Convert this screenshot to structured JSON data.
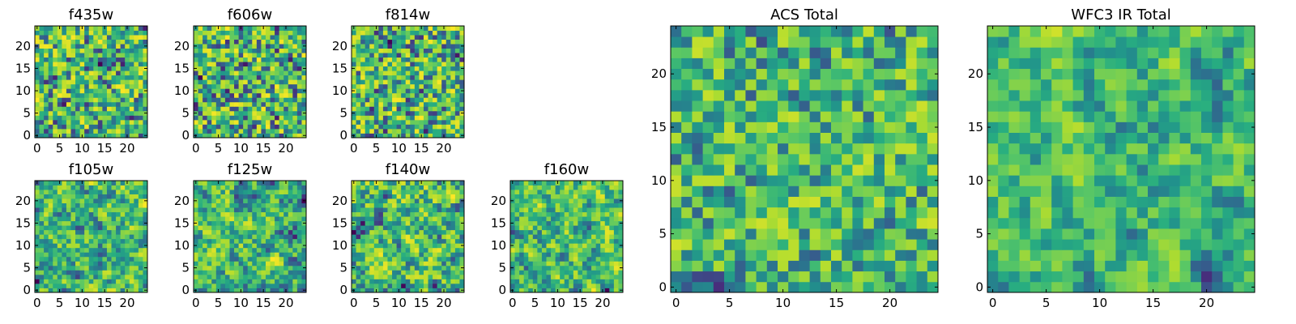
{
  "colormap": {
    "name": "viridis",
    "stops": [
      "#440154",
      "#472d7b",
      "#3b528b",
      "#2c728e",
      "#21918c",
      "#28ae80",
      "#5ec962",
      "#addc30",
      "#fde725"
    ]
  },
  "chart_data": [
    {
      "type": "heatmap",
      "title": "f435w",
      "xticks": [
        "0",
        "5",
        "10",
        "15",
        "20"
      ],
      "yticks": [
        "0",
        "5",
        "10",
        "15",
        "20"
      ],
      "xlim": [
        -0.5,
        24.5
      ],
      "ylim": [
        -0.5,
        24.5
      ],
      "grid_size": [
        25,
        25
      ],
      "value_range": [
        0,
        1
      ],
      "texture": {
        "seed": 11,
        "smooth": 0.15,
        "contrast": 1.0
      }
    },
    {
      "type": "heatmap",
      "title": "f606w",
      "xticks": [
        "0",
        "5",
        "10",
        "15",
        "20"
      ],
      "yticks": [
        "0",
        "5",
        "10",
        "15",
        "20"
      ],
      "xlim": [
        -0.5,
        24.5
      ],
      "ylim": [
        -0.5,
        24.5
      ],
      "grid_size": [
        25,
        25
      ],
      "value_range": [
        0,
        1
      ],
      "texture": {
        "seed": 23,
        "smooth": 0.15,
        "contrast": 1.0
      }
    },
    {
      "type": "heatmap",
      "title": "f814w",
      "xticks": [
        "0",
        "5",
        "10",
        "15",
        "20"
      ],
      "yticks": [
        "0",
        "5",
        "10",
        "15",
        "20"
      ],
      "xlim": [
        -0.5,
        24.5
      ],
      "ylim": [
        -0.5,
        24.5
      ],
      "grid_size": [
        25,
        25
      ],
      "value_range": [
        0,
        1
      ],
      "texture": {
        "seed": 37,
        "smooth": 0.15,
        "contrast": 1.0
      }
    },
    {
      "type": "heatmap",
      "title": "f105w",
      "xticks": [
        "0",
        "5",
        "10",
        "15",
        "20"
      ],
      "yticks": [
        "0",
        "5",
        "10",
        "15",
        "20"
      ],
      "xlim": [
        -0.5,
        24.5
      ],
      "ylim": [
        -0.5,
        24.5
      ],
      "grid_size": [
        25,
        25
      ],
      "value_range": [
        0,
        1
      ],
      "texture": {
        "seed": 41,
        "smooth": 0.55,
        "contrast": 1.0
      }
    },
    {
      "type": "heatmap",
      "title": "f125w",
      "xticks": [
        "0",
        "5",
        "10",
        "15",
        "20"
      ],
      "yticks": [
        "0",
        "5",
        "10",
        "15",
        "20"
      ],
      "xlim": [
        -0.5,
        24.5
      ],
      "ylim": [
        -0.5,
        24.5
      ],
      "grid_size": [
        25,
        25
      ],
      "value_range": [
        0,
        1
      ],
      "texture": {
        "seed": 53,
        "smooth": 0.55,
        "contrast": 1.0
      }
    },
    {
      "type": "heatmap",
      "title": "f140w",
      "xticks": [
        "0",
        "5",
        "10",
        "15",
        "20"
      ],
      "yticks": [
        "0",
        "5",
        "10",
        "15",
        "20"
      ],
      "xlim": [
        -0.5,
        24.5
      ],
      "ylim": [
        -0.5,
        24.5
      ],
      "grid_size": [
        25,
        25
      ],
      "value_range": [
        0,
        1
      ],
      "texture": {
        "seed": 67,
        "smooth": 0.55,
        "contrast": 1.0
      }
    },
    {
      "type": "heatmap",
      "title": "f160w",
      "xticks": [
        "0",
        "5",
        "10",
        "15",
        "20"
      ],
      "yticks": [
        "0",
        "5",
        "10",
        "15",
        "20"
      ],
      "xlim": [
        -0.5,
        24.5
      ],
      "ylim": [
        -0.5,
        24.5
      ],
      "grid_size": [
        25,
        25
      ],
      "value_range": [
        0,
        1
      ],
      "texture": {
        "seed": 79,
        "smooth": 0.55,
        "contrast": 1.0
      }
    },
    {
      "type": "heatmap",
      "title": "ACS Total",
      "xticks": [
        "0",
        "5",
        "10",
        "15",
        "20"
      ],
      "yticks": [
        "0",
        "5",
        "10",
        "15",
        "20"
      ],
      "xlim": [
        -0.5,
        24.5
      ],
      "ylim": [
        -0.5,
        24.5
      ],
      "grid_size": [
        25,
        25
      ],
      "value_range": [
        0,
        1
      ],
      "texture": {
        "seed": 97,
        "smooth": 0.2,
        "contrast": 0.8
      }
    },
    {
      "type": "heatmap",
      "title": "WFC3 IR Total",
      "xticks": [
        "0",
        "5",
        "10",
        "15",
        "20"
      ],
      "yticks": [
        "0",
        "5",
        "10",
        "15",
        "20"
      ],
      "xlim": [
        -0.5,
        24.5
      ],
      "ylim": [
        -0.5,
        24.5
      ],
      "grid_size": [
        25,
        25
      ],
      "value_range": [
        0,
        1
      ],
      "texture": {
        "seed": 131,
        "smooth": 0.6,
        "contrast": 0.8
      }
    }
  ]
}
